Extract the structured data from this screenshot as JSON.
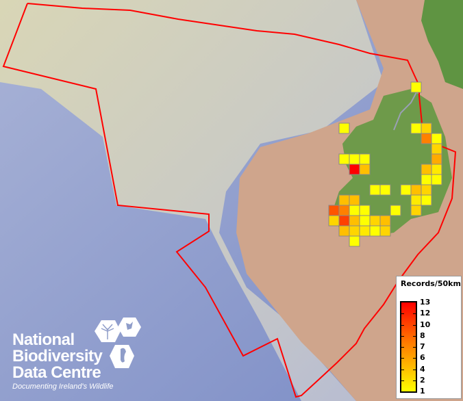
{
  "map": {
    "boundary_color": "#ff0000",
    "cell_values": [
      1,
      1,
      1,
      3,
      7,
      1,
      3,
      1,
      1,
      1,
      5,
      13,
      4,
      4,
      2,
      1,
      1,
      1,
      1,
      1,
      4,
      3,
      4,
      4,
      2,
      1,
      9,
      7,
      1,
      1,
      1,
      3,
      3,
      10,
      4,
      1,
      3,
      4,
      4,
      3,
      2,
      1,
      3,
      1
    ]
  },
  "legend": {
    "title": "Records/50km",
    "labels": [
      "13",
      "12",
      "10",
      "8",
      "7",
      "6",
      "4",
      "2",
      "1"
    ],
    "colors": {
      "max": "#ff0000",
      "mid": "#ff9a00",
      "min": "#ffff00"
    }
  },
  "logo": {
    "lines": [
      "National",
      "Biodiversity",
      "Data Centre"
    ],
    "tagline": "Documenting Ireland's Wildlife"
  }
}
